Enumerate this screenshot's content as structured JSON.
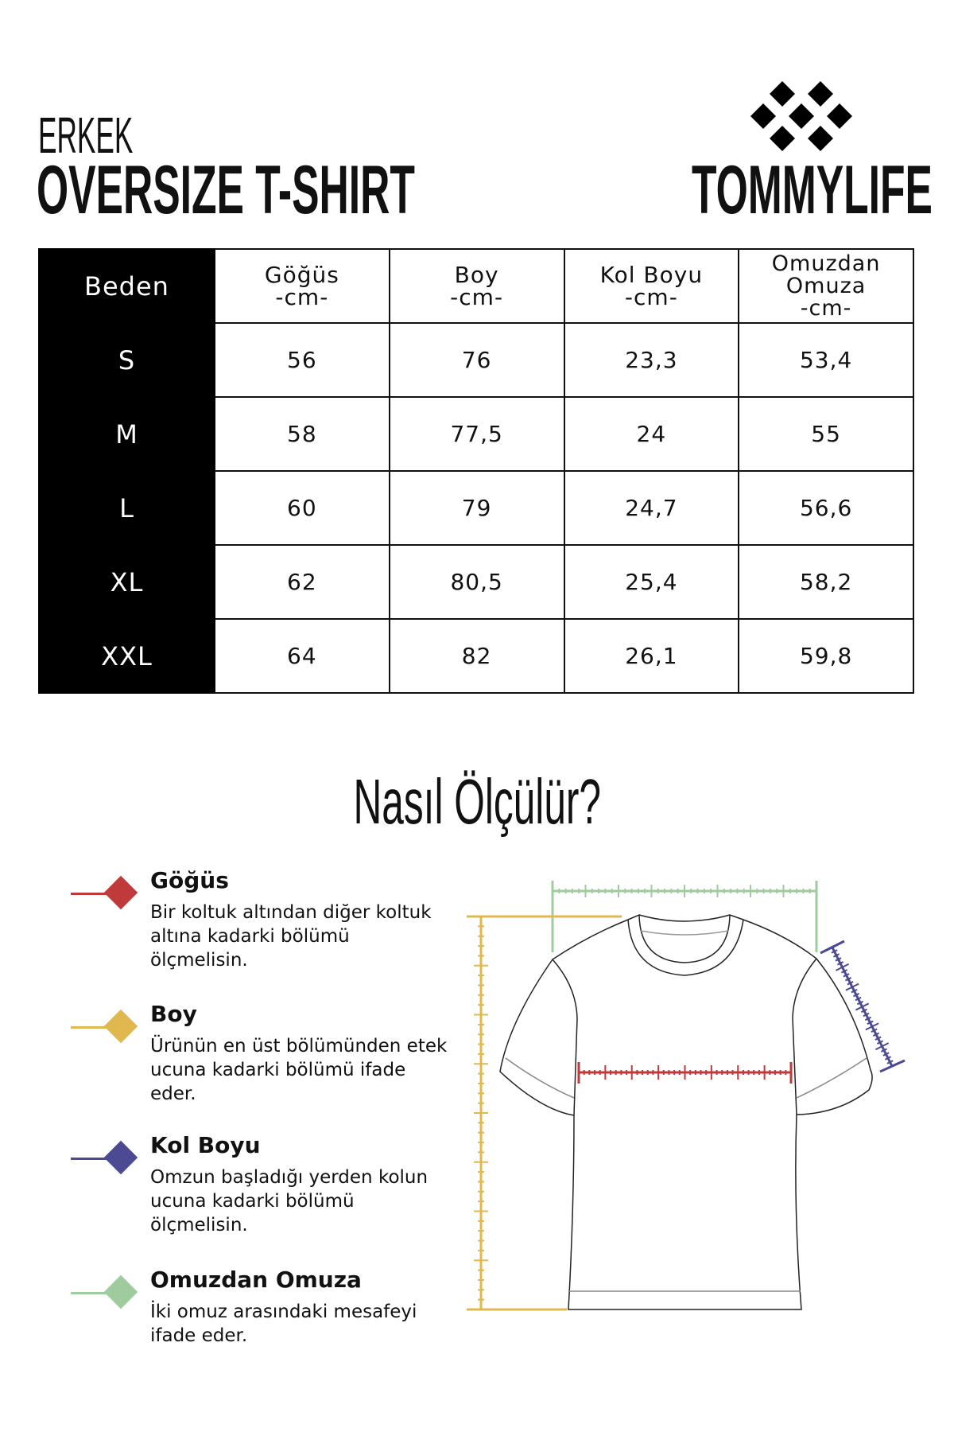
{
  "header": {
    "category": "ERKEK",
    "product": "OVERSIZE T-SHIRT",
    "brand": "TOMMYLIFE"
  },
  "table": {
    "headers": [
      {
        "label": "Beden",
        "unit": ""
      },
      {
        "label": "Göğüs",
        "unit": "-cm-"
      },
      {
        "label": "Boy",
        "unit": "-cm-"
      },
      {
        "label": "Kol Boyu",
        "unit": "-cm-"
      },
      {
        "label": "Omuzdan Omuza",
        "unit": "-cm-"
      }
    ],
    "rows": [
      [
        "S",
        "56",
        "76",
        "23,3",
        "53,4"
      ],
      [
        "M",
        "58",
        "77,5",
        "24",
        "55"
      ],
      [
        "L",
        "60",
        "79",
        "24,7",
        "56,6"
      ],
      [
        "XL",
        "62",
        "80,5",
        "25,4",
        "58,2"
      ],
      [
        "XXL",
        "64",
        "82",
        "26,1",
        "59,8"
      ]
    ]
  },
  "guide": {
    "title": "Nasıl Ölçülür?",
    "items": [
      {
        "title": "Göğüs",
        "desc": "Bir koltuk altından diğer koltuk altına kadarki bölümü ölçmelisin.",
        "color": "#c0393b"
      },
      {
        "title": "Boy",
        "desc": "Ürünün en üst bölümünden etek ucuna kadarki bölümü ifade eder.",
        "color": "#e0b84f"
      },
      {
        "title": "Kol Boyu",
        "desc": "Omzun başladığı yerden kolun ucuna kadarki bölümü ölçmelisin.",
        "color": "#4b4a92"
      },
      {
        "title": "Omuzdan Omuza",
        "desc": "İki omuz arasındaki mesafeyi ifade eder.",
        "color": "#9fcb9e"
      }
    ]
  }
}
